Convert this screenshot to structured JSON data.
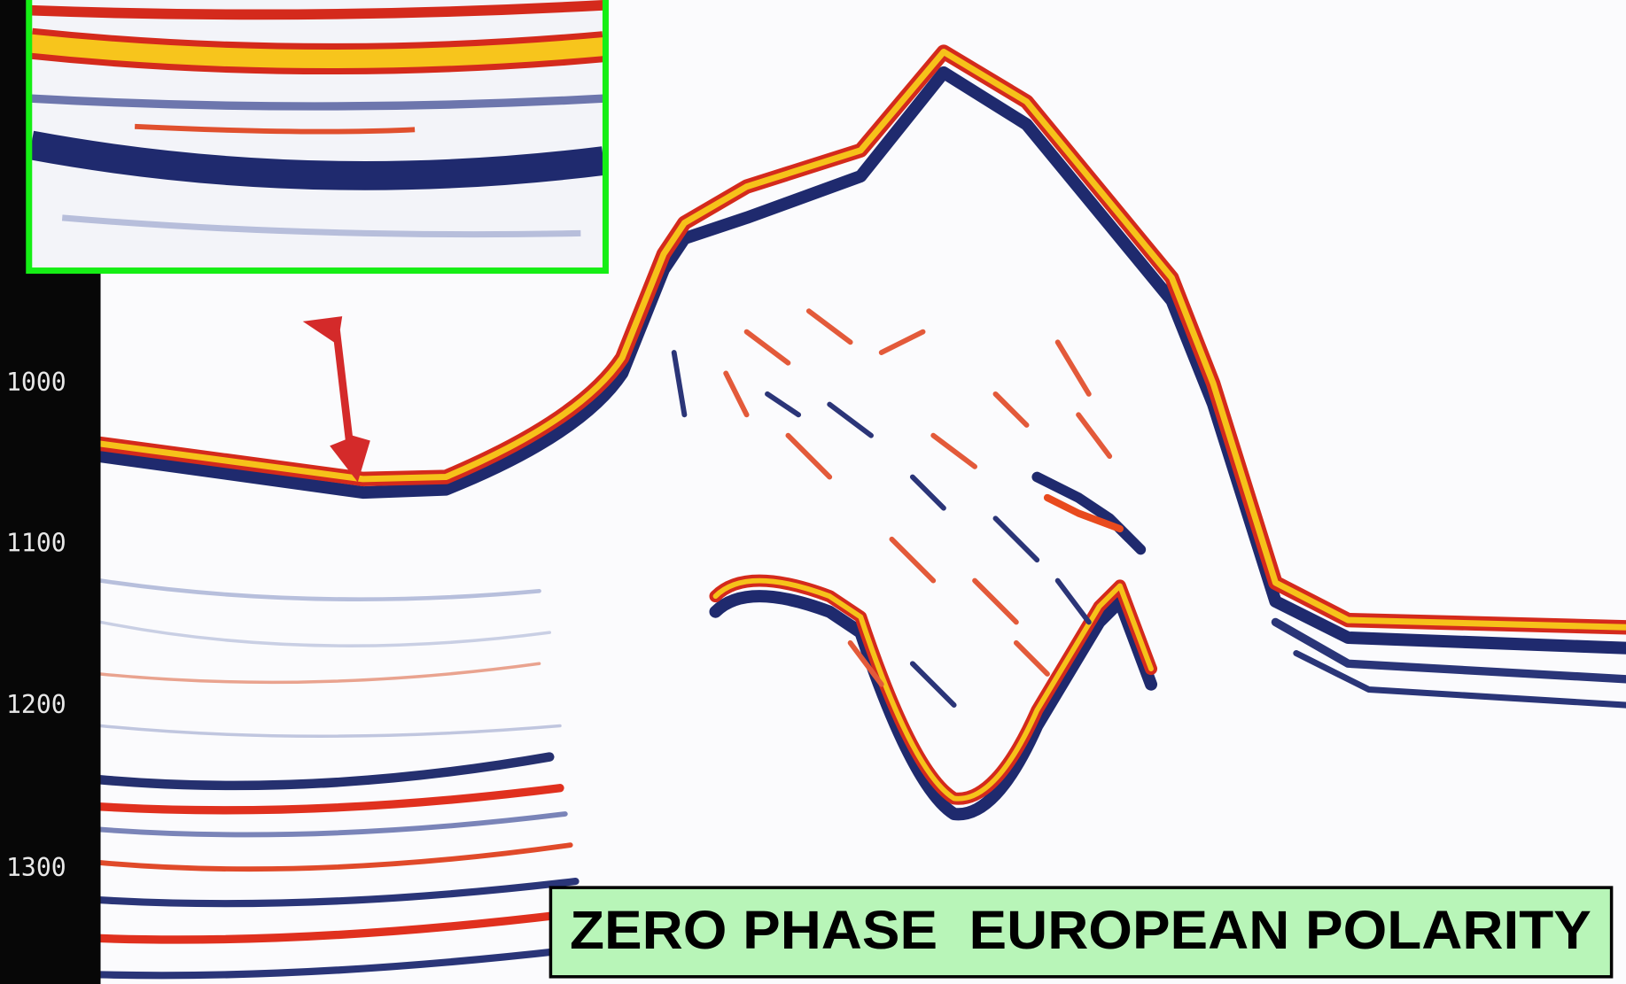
{
  "axis": {
    "labels": [
      "1000",
      "1100",
      "1200",
      "1300"
    ]
  },
  "caption": "ZERO PHASE  EUROPEAN POLARITY"
}
